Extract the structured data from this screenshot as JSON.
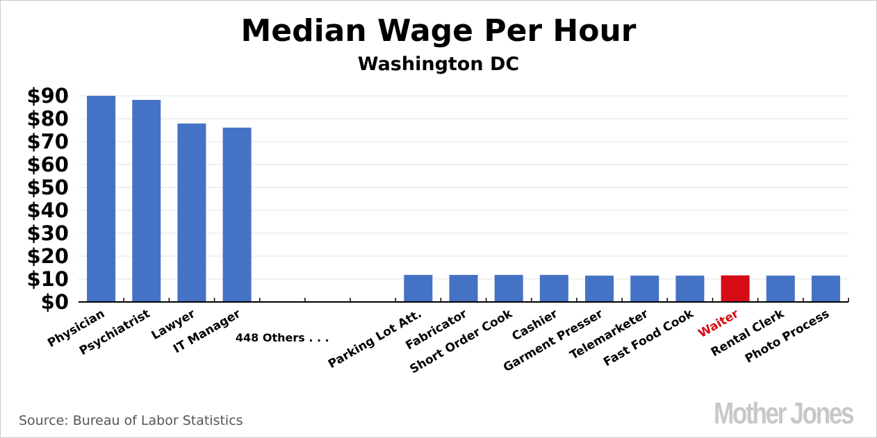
{
  "chart_data": {
    "type": "bar",
    "title": "Median Wage Per Hour",
    "subtitle": "Washington DC",
    "xlabel": "",
    "ylabel": "",
    "ylim": [
      0,
      90
    ],
    "yticks": [
      "$0",
      "$10",
      "$20",
      "$30",
      "$40",
      "$50",
      "$60",
      "$70",
      "$80",
      "$90"
    ],
    "categories": [
      "Physician",
      "Psychiatrist",
      "Lawyer",
      "IT Manager",
      "",
      "",
      "",
      "Parking Lot Att.",
      "Fabricator",
      "Short Order Cook",
      "Cashier",
      "Garment Presser",
      "Telemarketer",
      "Fast Food Cook",
      "Waiter",
      "Rental Clerk",
      "Photo Process"
    ],
    "values": [
      90,
      88.2,
      77.9,
      76.1,
      null,
      null,
      null,
      11.8,
      11.8,
      11.8,
      11.8,
      11.5,
      11.5,
      11.5,
      11.6,
      11.5,
      11.5
    ],
    "gap_label": "448 Others . . .",
    "highlight": "Waiter",
    "grid": true,
    "colors": {
      "bar": "#4472c4",
      "highlight": "#d50c15",
      "grid": "#e3e3e3"
    }
  },
  "source": "Source: Bureau of Labor Statistics",
  "logo": "Mother Jones"
}
